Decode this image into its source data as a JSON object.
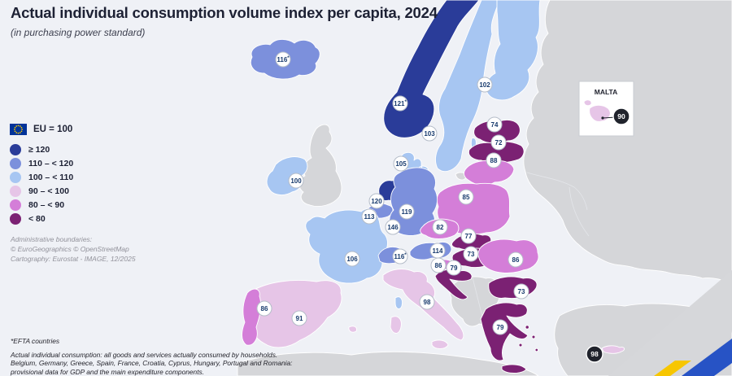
{
  "title": "Actual individual consumption volume index per capita, 2024",
  "subtitle": "(in purchasing power standard)",
  "legend": {
    "eu_label": "EU = 100",
    "classes": [
      {
        "key": "ge120",
        "label": "≥ 120",
        "color": "#2a3c99"
      },
      {
        "key": "b110",
        "label": "110 – < 120",
        "color": "#7c90dc"
      },
      {
        "key": "b100",
        "label": "100 – < 110",
        "color": "#a7c6f2"
      },
      {
        "key": "b90",
        "label": "90 – < 100",
        "color": "#e6c5e7"
      },
      {
        "key": "b80",
        "label": "80 – < 90",
        "color": "#d47ed8"
      },
      {
        "key": "lt80",
        "label": "< 80",
        "color": "#7b2173"
      }
    ],
    "no_data_color": "#d5d6d9",
    "flag_blue": "#003399",
    "flag_yellow": "#ffcc00"
  },
  "credits": [
    "Administrative boundaries:",
    "© EuroGeographics © OpenStreetMap",
    "Cartography: Eurostat - IMAGE, 12/2025"
  ],
  "footnotes": [
    "*EFTA countries",
    "Actual individual consumption: all goods and services actually consumed by households.",
    "Belgium, Germany, Greece, Spain, France, Croatia, Cyprus, Hungary, Portugal and Romania:",
    "provisional data for GDP and the main expenditure components."
  ],
  "inset": {
    "label": "MALTA"
  },
  "countries": [
    {
      "id": "IS",
      "name": "Iceland",
      "value": "116",
      "efta": true,
      "class": "b110",
      "badge": [
        348,
        73
      ]
    },
    {
      "id": "NO",
      "name": "Norway",
      "value": "121",
      "efta": true,
      "class": "ge120",
      "badge": [
        492,
        127
      ]
    },
    {
      "id": "SE",
      "name": "Sweden",
      "value": "103",
      "class": "b100",
      "badge": [
        528,
        164
      ]
    },
    {
      "id": "FI",
      "name": "Finland",
      "value": "102",
      "class": "b100",
      "badge": [
        596,
        104
      ]
    },
    {
      "id": "DK",
      "name": "Denmark",
      "value": "105",
      "class": "b100",
      "badge": [
        493,
        201
      ]
    },
    {
      "id": "EE",
      "name": "Estonia",
      "value": "74",
      "class": "lt80",
      "badge": [
        608,
        153
      ]
    },
    {
      "id": "LV",
      "name": "Latvia",
      "value": "72",
      "class": "lt80",
      "badge": [
        613,
        175
      ]
    },
    {
      "id": "LT",
      "name": "Lithuania",
      "value": "88",
      "class": "b80",
      "badge": [
        607,
        197
      ]
    },
    {
      "id": "PL",
      "name": "Poland",
      "value": "85",
      "class": "b80",
      "badge": [
        573,
        242
      ]
    },
    {
      "id": "IE",
      "name": "Ireland",
      "value": "100",
      "class": "b100",
      "badge": [
        364,
        222
      ]
    },
    {
      "id": "NL",
      "name": "Netherlands",
      "value": "120",
      "class": "ge120",
      "badge": [
        463,
        247
      ]
    },
    {
      "id": "BE",
      "name": "Belgium",
      "value": "113",
      "class": "b110",
      "badge": [
        454,
        266
      ]
    },
    {
      "id": "LU",
      "name": "Luxembourg",
      "value": "146",
      "class": "ge120",
      "badge": [
        483,
        279
      ]
    },
    {
      "id": "DE",
      "name": "Germany",
      "value": "119",
      "class": "b110",
      "badge": [
        500,
        260
      ]
    },
    {
      "id": "FR",
      "name": "France",
      "value": "106",
      "class": "b100",
      "badge": [
        433,
        318
      ]
    },
    {
      "id": "CH",
      "name": "Switzerland",
      "value": "116",
      "efta": true,
      "class": "b110",
      "badge": [
        492,
        315
      ]
    },
    {
      "id": "AT",
      "name": "Austria",
      "value": "114",
      "class": "b110",
      "badge": [
        538,
        308
      ]
    },
    {
      "id": "CZ",
      "name": "Czechia",
      "value": "82",
      "class": "b80",
      "badge": [
        541,
        279
      ]
    },
    {
      "id": "SK",
      "name": "Slovakia",
      "value": "77",
      "class": "lt80",
      "badge": [
        576,
        290
      ]
    },
    {
      "id": "HU",
      "name": "Hungary",
      "value": "73",
      "class": "lt80",
      "badge": [
        579,
        312
      ]
    },
    {
      "id": "SI",
      "name": "Slovenia",
      "value": "86",
      "class": "b80",
      "badge": [
        539,
        326
      ]
    },
    {
      "id": "HR",
      "name": "Croatia",
      "value": "79",
      "class": "lt80",
      "badge": [
        558,
        329
      ]
    },
    {
      "id": "RO",
      "name": "Romania",
      "value": "86",
      "class": "b80",
      "badge": [
        634,
        319
      ]
    },
    {
      "id": "BG",
      "name": "Bulgaria",
      "value": "73",
      "class": "lt80",
      "badge": [
        641,
        358
      ]
    },
    {
      "id": "EL",
      "name": "Greece",
      "value": "79",
      "class": "lt80",
      "badge": [
        615,
        402
      ]
    },
    {
      "id": "IT",
      "name": "Italy",
      "value": "98",
      "class": "b90",
      "badge": [
        525,
        371
      ]
    },
    {
      "id": "ES",
      "name": "Spain",
      "value": "91",
      "class": "b90",
      "badge": [
        368,
        391
      ]
    },
    {
      "id": "PT",
      "name": "Portugal",
      "value": "86",
      "class": "b80",
      "badge": [
        325,
        379
      ]
    },
    {
      "id": "MT",
      "name": "Malta",
      "value": "90",
      "class": "b90",
      "badge": [
        764,
        143
      ],
      "dark_badge": true
    },
    {
      "id": "CY",
      "name": "Cyprus",
      "value": "98",
      "class": "b90",
      "badge": [
        731,
        435
      ],
      "dark_badge": true
    }
  ],
  "badge_style": {
    "text_color": "#173a6d",
    "border_color": "#b4bcc8",
    "dark_fill": "#20232c"
  },
  "decor": {
    "blue": "#2753c5",
    "yellow": "#f7c600",
    "gray": "#d6d7da"
  }
}
